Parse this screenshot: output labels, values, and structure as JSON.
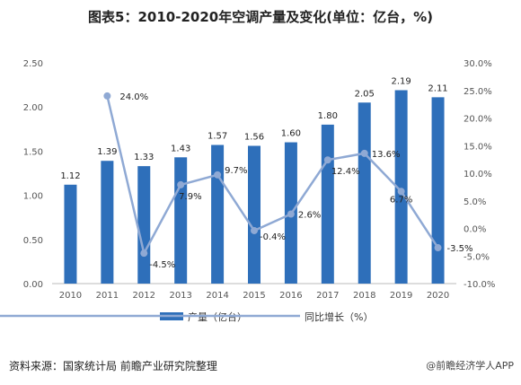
{
  "title": "图表5：2010-2020年空调产量及变化(单位：亿台，%)",
  "source": "资料来源：国家统计局 前瞻产业研究院整理",
  "credit": "@前瞻经济学人APP",
  "chart_data": {
    "type": "bar",
    "categories": [
      "2010",
      "2011",
      "2012",
      "2013",
      "2014",
      "2015",
      "2016",
      "2017",
      "2018",
      "2019",
      "2020"
    ],
    "series": [
      {
        "name": "产量（亿台）",
        "type": "bar",
        "axis": "left",
        "values": [
          1.12,
          1.39,
          1.33,
          1.43,
          1.57,
          1.56,
          1.6,
          1.8,
          2.05,
          2.19,
          2.11
        ],
        "labels": [
          "1.12",
          "1.39",
          "1.33",
          "1.43",
          "1.57",
          "1.56",
          "1.60",
          "1.80",
          "2.05",
          "2.19",
          "2.11"
        ],
        "color": "#2e6fba"
      },
      {
        "name": "同比增长（%）",
        "type": "line",
        "axis": "right",
        "values": [
          null,
          24.0,
          -4.5,
          7.9,
          9.7,
          -0.4,
          2.6,
          12.4,
          13.6,
          6.7,
          -3.5
        ],
        "labels": [
          "",
          "24.0%",
          "-4.5%",
          "7.9%",
          "9.7%",
          "-0.4%",
          "2.6%",
          "12.4%",
          "13.6%",
          "6.7%",
          "-3.5%"
        ],
        "color": "#8fa9d4"
      }
    ],
    "ylim_left": [
      0,
      2.5
    ],
    "yticks_left": [
      "0.00",
      "0.50",
      "1.00",
      "1.50",
      "2.00",
      "2.50"
    ],
    "ylim_right": [
      -10,
      30
    ],
    "yticks_right": [
      "-10.0%",
      "-5.0%",
      "0.0%",
      "5.0%",
      "10.0%",
      "15.0%",
      "20.0%",
      "25.0%",
      "30.0%"
    ],
    "grid": false,
    "legend": "bottom"
  }
}
